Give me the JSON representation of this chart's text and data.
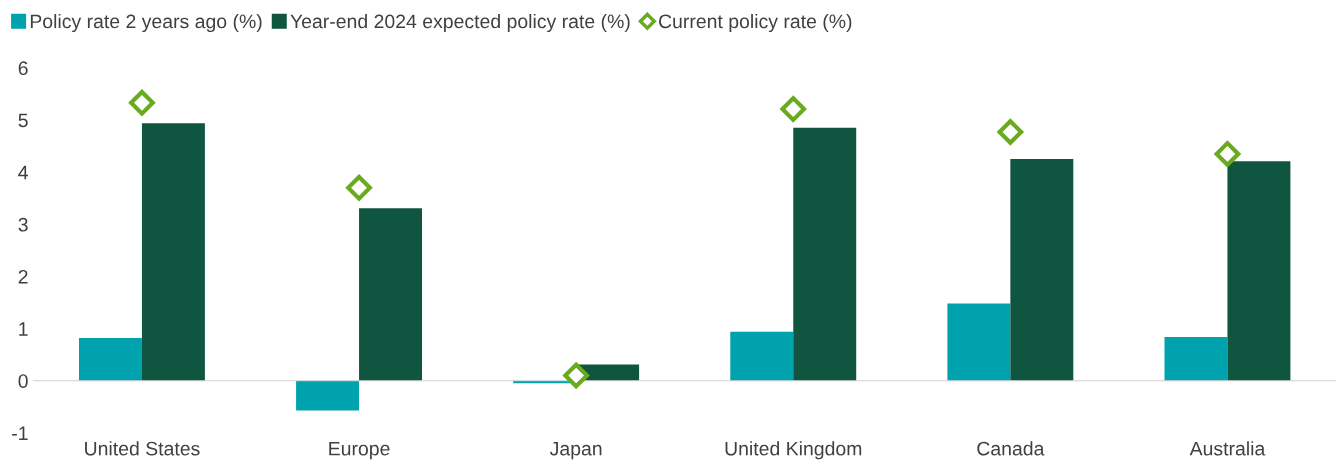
{
  "chart_data": {
    "type": "bar",
    "categories": [
      "United States",
      "Europe",
      "Japan",
      "United Kingdom",
      "Canada",
      "Australia"
    ],
    "series": [
      {
        "name": "Policy rate 2 years ago (%)",
        "color": "#00a3ad",
        "values": [
          0.82,
          -0.57,
          -0.05,
          0.94,
          1.48,
          0.84
        ]
      },
      {
        "name": "Year-end 2024 expected policy rate (%)",
        "color": "#10553f",
        "values": [
          4.94,
          3.31,
          0.31,
          4.85,
          4.25,
          4.21
        ]
      },
      {
        "name": "Current policy rate (%)",
        "color": "#6aaa1f",
        "type": "scatter",
        "marker": "diamond",
        "x": [
          "United States",
          "Europe",
          "Japan",
          "United Kingdom",
          "Canada",
          "Australia"
        ],
        "values": [
          5.33,
          3.7,
          0.1,
          5.21,
          4.77,
          4.35
        ]
      }
    ],
    "ylim": [
      -1,
      6
    ],
    "yticks": [
      {
        "value": -1,
        "label": "-1"
      },
      0,
      1,
      2,
      3,
      4,
      5,
      6
    ],
    "legend": "top left"
  }
}
